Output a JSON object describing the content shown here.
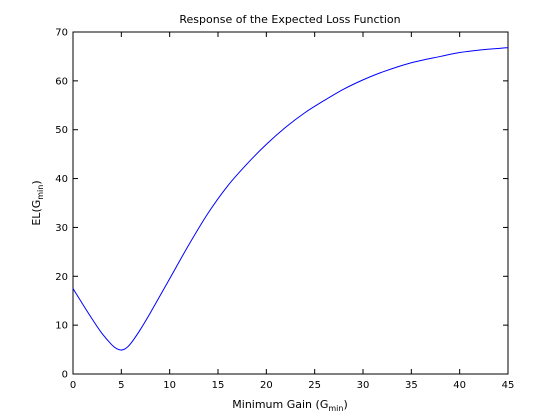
{
  "chart_data": {
    "type": "line",
    "title": "Response of the Expected Loss Function",
    "xlabel": {
      "main": "Minimum Gain (G",
      "sub": "min",
      "end": ")"
    },
    "ylabel": {
      "main": "EL(G",
      "sub": "min",
      "end": ")"
    },
    "xlim": [
      0,
      45
    ],
    "ylim": [
      0,
      70
    ],
    "x_ticks": [
      0,
      5,
      10,
      15,
      20,
      25,
      30,
      35,
      40,
      45
    ],
    "y_ticks": [
      0,
      10,
      20,
      30,
      40,
      50,
      60,
      70
    ],
    "grid": false,
    "series": [
      {
        "color": "#0000ff",
        "x": [
          0,
          1,
          2,
          3,
          4,
          4.5,
          5,
          5.5,
          6,
          7,
          8,
          10,
          12,
          14,
          16,
          18,
          20,
          22,
          24,
          26,
          28,
          30,
          32,
          35,
          38,
          40,
          42,
          45
        ],
        "y": [
          17.5,
          14.3,
          11.2,
          8.3,
          6.0,
          5.2,
          4.9,
          5.3,
          6.3,
          9.2,
          12.5,
          19.5,
          26.5,
          33.0,
          38.5,
          43.0,
          47.0,
          50.5,
          53.5,
          56.0,
          58.3,
          60.2,
          61.8,
          63.7,
          65.0,
          65.8,
          66.3,
          66.8
        ]
      }
    ]
  }
}
